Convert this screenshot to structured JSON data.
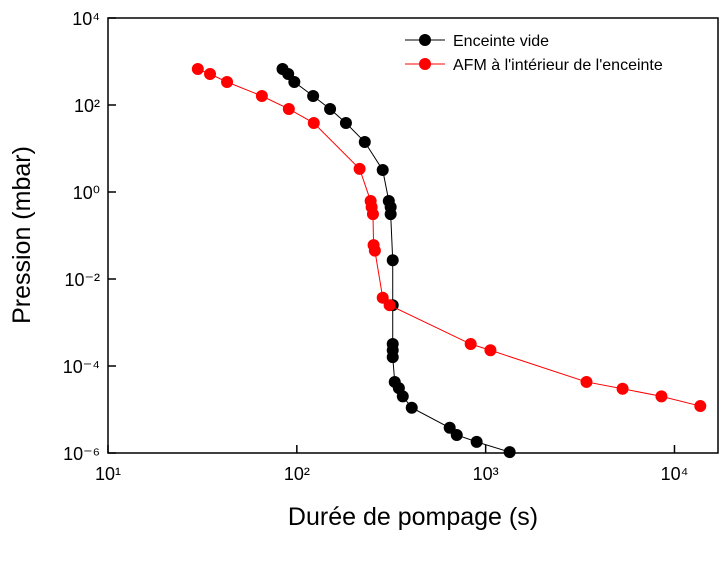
{
  "chart_data": {
    "type": "line",
    "x_label": "Durée de pompage (s)",
    "y_label": "Pression (mbar)",
    "xlog": true,
    "ylog": true,
    "legend": "top-right",
    "xlim": [
      10,
      17000
    ],
    "xticks": [
      {
        "value": 10,
        "label": "10¹"
      },
      {
        "value": 100,
        "label": "10²"
      },
      {
        "value": 1000,
        "label": "10³"
      },
      {
        "value": 10000,
        "label": "10⁴"
      }
    ],
    "ylim": [
      1e-06,
      10000
    ],
    "yticks": [
      {
        "value": 1e-06,
        "label": "10⁻⁶"
      },
      {
        "value": 0.0001,
        "label": "10⁻⁴"
      },
      {
        "value": 0.01,
        "label": "10⁻²"
      },
      {
        "value": 1,
        "label": "10⁰"
      },
      {
        "value": 100,
        "label": "10²"
      },
      {
        "value": 10000,
        "label": "10⁴"
      }
    ],
    "series": [
      {
        "name": "Enceinte vide",
        "color": "#000000",
        "x": [
          84,
          90,
          97,
          122,
          150,
          182,
          229,
          285,
          307,
          314,
          314,
          322,
          322,
          322,
          322,
          322,
          330,
          347,
          364,
          406,
          645,
          703,
          896,
          1340
        ],
        "values": [
          673,
          516,
          338,
          161,
          81,
          38.5,
          14.1,
          3.2,
          0.62,
          0.45,
          0.31,
          0.027,
          0.0025,
          0.00032,
          0.00023,
          0.00016,
          4.3e-05,
          3.1e-05,
          2e-05,
          1.1e-05,
          3.8e-06,
          2.6e-06,
          1.8e-06,
          1.05e-06
        ]
      },
      {
        "name": "AFM à l'intérieur de l'enceinte",
        "color": "#ff0000",
        "x": [
          29.9,
          34.7,
          42.7,
          65.3,
          90.7,
          123,
          215,
          246,
          249,
          253,
          255,
          259,
          285,
          310,
          833,
          1060,
          3420,
          5310,
          8530,
          13700
        ],
        "values": [
          673,
          516,
          338,
          161,
          81,
          38.5,
          3.4,
          0.62,
          0.45,
          0.31,
          0.06,
          0.045,
          0.0037,
          0.0025,
          0.00032,
          0.00023,
          4.3e-05,
          3e-05,
          2e-05,
          1.2e-05
        ]
      }
    ]
  }
}
